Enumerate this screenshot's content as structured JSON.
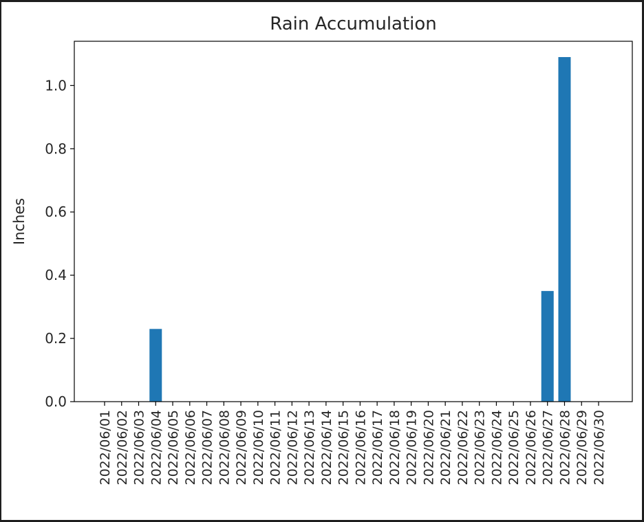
{
  "chart_data": {
    "type": "bar",
    "title": "Rain Accumulation",
    "xlabel": "",
    "ylabel": "Inches",
    "categories": [
      "2022/06/01",
      "2022/06/02",
      "2022/06/03",
      "2022/06/04",
      "2022/06/05",
      "2022/06/06",
      "2022/06/07",
      "2022/06/08",
      "2022/06/09",
      "2022/06/10",
      "2022/06/11",
      "2022/06/12",
      "2022/06/13",
      "2022/06/14",
      "2022/06/15",
      "2022/06/16",
      "2022/06/17",
      "2022/06/18",
      "2022/06/19",
      "2022/06/20",
      "2022/06/21",
      "2022/06/22",
      "2022/06/23",
      "2022/06/24",
      "2022/06/25",
      "2022/06/26",
      "2022/06/27",
      "2022/06/28",
      "2022/06/29",
      "2022/06/30"
    ],
    "values": [
      0,
      0,
      0,
      0.23,
      0,
      0,
      0,
      0,
      0,
      0,
      0,
      0,
      0,
      0,
      0,
      0,
      0,
      0,
      0,
      0,
      0,
      0,
      0,
      0,
      0,
      0,
      0.35,
      1.09,
      0,
      0
    ],
    "ylim": [
      0,
      1.14
    ],
    "yticks": [
      "0.0",
      "0.2",
      "0.4",
      "0.6",
      "0.8",
      "1.0"
    ],
    "grid": false,
    "bar_color": "#1f77b4"
  }
}
